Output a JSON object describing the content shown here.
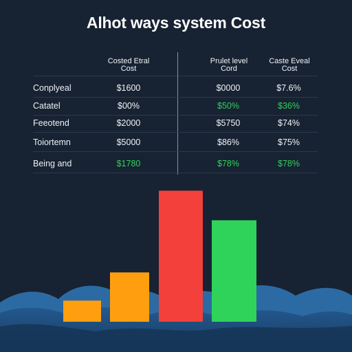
{
  "title": "Alhot ways system Cost",
  "table": {
    "columns": [
      {
        "label": "Costed Etral\nCost"
      },
      {
        "label": "Prulet level\nCord"
      },
      {
        "label": "Caste Eveal\nCost"
      }
    ],
    "rows": [
      {
        "label": "Conplyeal",
        "cells": [
          {
            "v": "$1600",
            "c": "#f2f4f7"
          },
          {
            "v": "$0000",
            "c": "#f2f4f7"
          },
          {
            "v": "$7.6%",
            "c": "#f2f4f7"
          }
        ]
      },
      {
        "label": "Catatel",
        "cells": [
          {
            "v": "$00%",
            "c": "#f2f4f7"
          },
          {
            "v": "$50%",
            "c": "#2fd35a"
          },
          {
            "v": "$36%",
            "c": "#2fd35a"
          }
        ]
      },
      {
        "label": "Feeotend",
        "cells": [
          {
            "v": "$2000",
            "c": "#f2f4f7"
          },
          {
            "v": "$5750",
            "c": "#f2f4f7"
          },
          {
            "v": "$74%",
            "c": "#f2f4f7"
          }
        ]
      },
      {
        "label": "Toiortemn",
        "cells": [
          {
            "v": "$5000",
            "c": "#f2f4f7"
          },
          {
            "v": "$86%",
            "c": "#f2f4f7"
          },
          {
            "v": "$75%",
            "c": "#f2f4f7"
          }
        ]
      },
      {
        "label": "Being and",
        "cells": [
          {
            "v": "$1780",
            "c": "#2fd35a"
          },
          {
            "v": "$78%",
            "c": "#2fd35a"
          },
          {
            "v": "$78%",
            "c": "#2fd35a"
          }
        ]
      }
    ]
  },
  "colors": {
    "background": "#172232",
    "text": "#f2f4f7",
    "green": "#2fd35a",
    "orange": "#ff9f0f",
    "red": "#f4403b",
    "wave_dark": "#1e4d7d",
    "wave_light": "#2c6aa3"
  },
  "chart_data": {
    "type": "bar",
    "title": "",
    "categories": [
      "",
      "",
      "",
      ""
    ],
    "values": [
      15,
      35,
      93,
      72
    ],
    "colors": [
      "#ff9f0f",
      "#ff9f0f",
      "#f4403b",
      "#2fd35a"
    ],
    "ylim": [
      0,
      100
    ],
    "grid": false,
    "legend": "none"
  }
}
